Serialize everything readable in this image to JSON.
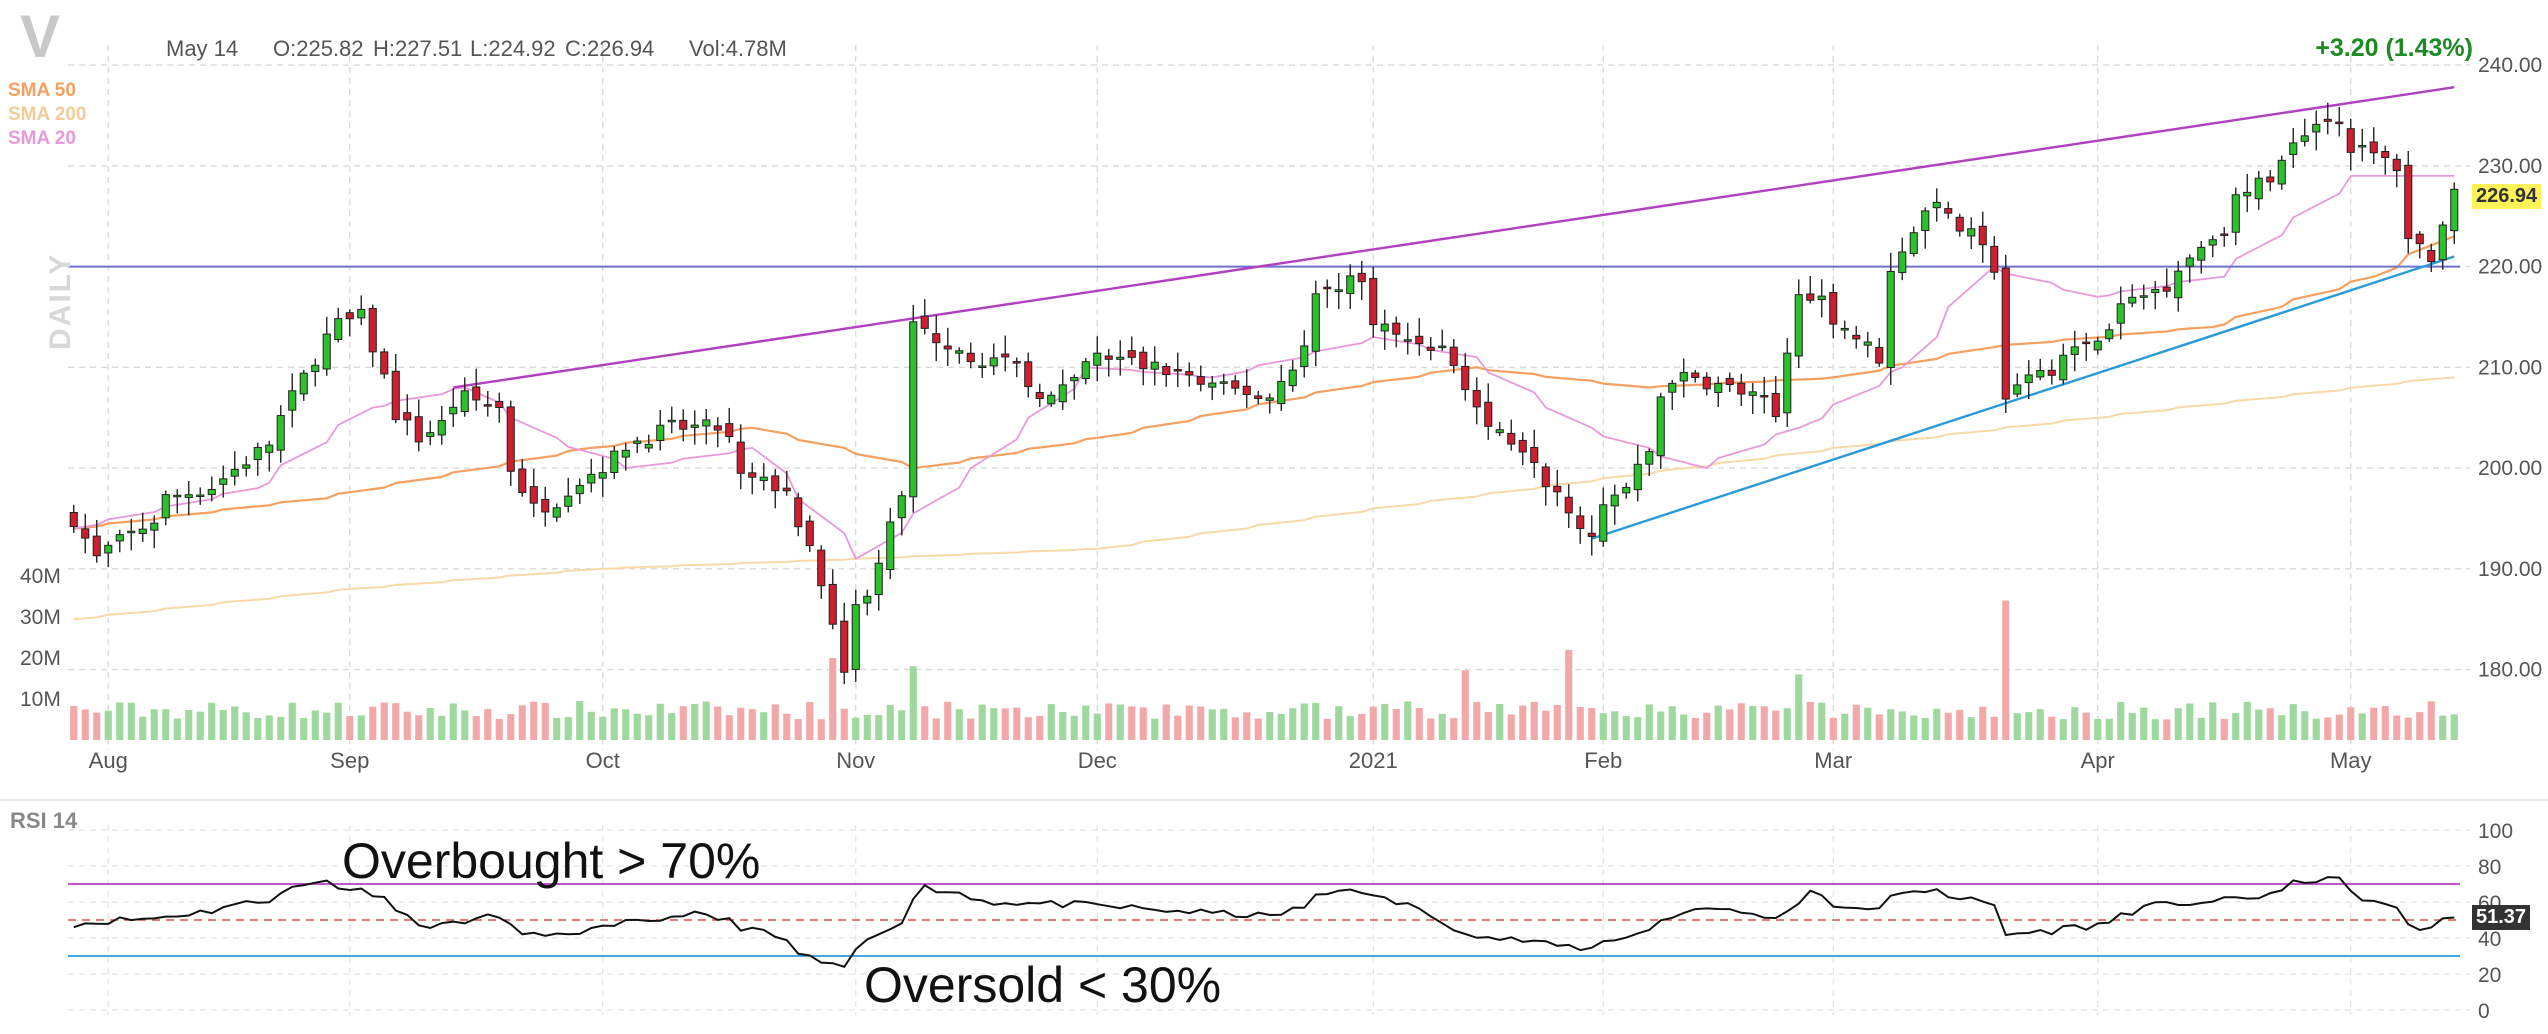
{
  "header": {
    "ticker": "V",
    "date": "May 14",
    "open": "O:225.82",
    "high": "H:227.51",
    "low": "L:224.92",
    "close": "C:226.94",
    "volume": "Vol:4.78M",
    "change": "+3.20 (1.43%)"
  },
  "legend": {
    "sma50": "SMA 50",
    "sma200": "SMA 200",
    "sma20": "SMA 20"
  },
  "timeframe_label": "DAILY",
  "rsi": {
    "title": "RSI 14",
    "current_label": "51.37",
    "overbought_text": "Overbought > 70%",
    "oversold_text": "Oversold < 30%"
  },
  "current_price_label": "226.94",
  "colors": {
    "up": "#2dc02d",
    "down": "#cc1f2f",
    "sma50": "#f5a060",
    "sma200": "#f7d8a8",
    "sma20": "#e89ad8",
    "resistance_trend": "#b040c0",
    "support_trend": "#2a9ad8",
    "horizontal_level": "#7070d0",
    "volume_up": "#9fd89f",
    "volume_down": "#f2a8a8",
    "rsi_line": "#111111",
    "rsi_overbought": "#b040c0",
    "rsi_oversold": "#2a9ad8",
    "rsi_mid": "#e05050",
    "price_badge": "#fff35a"
  },
  "chart_data": {
    "type": "candlestick",
    "price_axis": {
      "ticks": [
        180,
        190,
        200,
        210,
        220,
        230,
        240
      ],
      "tick_labels": [
        "180.00",
        "190.00",
        "200.00",
        "210.00",
        "220.00",
        "230.00",
        "240.00"
      ],
      "range": [
        174,
        241
      ]
    },
    "volume_axis": {
      "ticks": [
        10,
        20,
        30,
        40
      ],
      "tick_labels": [
        "10M",
        "20M",
        "30M",
        "40M"
      ],
      "unit": "M"
    },
    "rsi_axis": {
      "ticks": [
        0,
        20,
        40,
        60,
        80,
        100
      ],
      "tick_labels": [
        "0",
        "20",
        "40",
        "60",
        "80",
        "100"
      ],
      "range": [
        0,
        100
      ],
      "overbought": 70,
      "oversold": 30
    },
    "x_labels": [
      {
        "label": "Aug",
        "date": "2020-08-03"
      },
      {
        "label": "Sep",
        "date": "2020-09-01"
      },
      {
        "label": "Oct",
        "date": "2020-10-01"
      },
      {
        "label": "Nov",
        "date": "2020-11-02"
      },
      {
        "label": "Dec",
        "date": "2020-12-01"
      },
      {
        "label": "2021",
        "date": "2021-01-04"
      },
      {
        "label": "Feb",
        "date": "2021-02-01"
      },
      {
        "label": "Mar",
        "date": "2021-03-01"
      },
      {
        "label": "Apr",
        "date": "2021-04-01"
      },
      {
        "label": "May",
        "date": "2021-05-03"
      }
    ],
    "start_date": "2020-07-29",
    "end_date": "2021-05-14",
    "close_anchors": [
      [
        "2020-07-29",
        195
      ],
      [
        "2020-07-31",
        191
      ],
      [
        "2020-08-03",
        192
      ],
      [
        "2020-08-10",
        197
      ],
      [
        "2020-08-17",
        199
      ],
      [
        "2020-08-24",
        205
      ],
      [
        "2020-08-28",
        213
      ],
      [
        "2020-09-02",
        215
      ],
      [
        "2020-09-04",
        209
      ],
      [
        "2020-09-09",
        203
      ],
      [
        "2020-09-15",
        207
      ],
      [
        "2020-09-18",
        206
      ],
      [
        "2020-09-23",
        196
      ],
      [
        "2020-09-28",
        198
      ],
      [
        "2020-10-02",
        201
      ],
      [
        "2020-10-09",
        204
      ],
      [
        "2020-10-15",
        204
      ],
      [
        "2020-10-19",
        199
      ],
      [
        "2020-10-23",
        198
      ],
      [
        "2020-10-27",
        192
      ],
      [
        "2020-10-30",
        180
      ],
      [
        "2020-11-03",
        188
      ],
      [
        "2020-11-06",
        197
      ],
      [
        "2020-11-09",
        214
      ],
      [
        "2020-11-13",
        212
      ],
      [
        "2020-11-20",
        210
      ],
      [
        "2020-11-25",
        207
      ],
      [
        "2020-12-01",
        211
      ],
      [
        "2020-12-08",
        210
      ],
      [
        "2020-12-15",
        208
      ],
      [
        "2020-12-22",
        207
      ],
      [
        "2020-12-28",
        217
      ],
      [
        "2020-12-31",
        219
      ],
      [
        "2021-01-06",
        213
      ],
      [
        "2021-01-12",
        212
      ],
      [
        "2021-01-15",
        206
      ],
      [
        "2021-01-20",
        203
      ],
      [
        "2021-01-26",
        198
      ],
      [
        "2021-01-29",
        193
      ],
      [
        "2021-02-03",
        198
      ],
      [
        "2021-02-09",
        209
      ],
      [
        "2021-02-16",
        208
      ],
      [
        "2021-02-22",
        205
      ],
      [
        "2021-02-24",
        218
      ],
      [
        "2021-03-01",
        215
      ],
      [
        "2021-03-05",
        211
      ],
      [
        "2021-03-09",
        222
      ],
      [
        "2021-03-12",
        227
      ],
      [
        "2021-03-17",
        223
      ],
      [
        "2021-03-19",
        220
      ],
      [
        "2021-03-22",
        207
      ],
      [
        "2021-03-26",
        210
      ],
      [
        "2021-03-31",
        212
      ],
      [
        "2021-04-05",
        216
      ],
      [
        "2021-04-12",
        220
      ],
      [
        "2021-04-16",
        224
      ],
      [
        "2021-04-22",
        229
      ],
      [
        "2021-04-26",
        233
      ],
      [
        "2021-04-29",
        235
      ],
      [
        "2021-05-03",
        232
      ],
      [
        "2021-05-07",
        230
      ],
      [
        "2021-05-10",
        223
      ],
      [
        "2021-05-12",
        221
      ],
      [
        "2021-05-14",
        226.94
      ]
    ],
    "trend_lines": [
      {
        "name": "resistance",
        "from": [
          "2020-09-14",
          208
        ],
        "to": [
          "2021-05-14",
          237.8
        ]
      },
      {
        "name": "support",
        "from": [
          "2021-01-29",
          193
        ],
        "to": [
          "2021-05-14",
          221
        ]
      }
    ],
    "horizontal_levels": [
      220
    ],
    "sma20_anchors": [
      [
        "2020-07-29",
        194
      ],
      [
        "2020-08-20",
        198
      ],
      [
        "2020-09-03",
        206
      ],
      [
        "2020-09-15",
        208
      ],
      [
        "2020-09-25",
        203
      ],
      [
        "2020-10-05",
        200
      ],
      [
        "2020-10-20",
        202
      ],
      [
        "2020-11-02",
        191
      ],
      [
        "2020-11-16",
        200
      ],
      [
        "2020-11-30",
        210
      ],
      [
        "2020-12-15",
        209
      ],
      [
        "2021-01-04",
        213
      ],
      [
        "2021-01-15",
        211
      ],
      [
        "2021-01-29",
        204
      ],
      [
        "2021-02-12",
        200
      ],
      [
        "2021-02-24",
        204
      ],
      [
        "2021-03-09",
        210
      ],
      [
        "2021-03-19",
        220
      ],
      [
        "2021-04-01",
        217
      ],
      [
        "2021-04-16",
        219
      ],
      [
        "2021-05-03",
        229
      ],
      [
        "2021-05-14",
        229
      ]
    ],
    "sma50_anchors": [
      [
        "2020-07-29",
        194
      ],
      [
        "2020-08-28",
        197
      ],
      [
        "2020-09-30",
        202
      ],
      [
        "2020-10-20",
        204
      ],
      [
        "2020-11-09",
        200
      ],
      [
        "2020-12-01",
        203
      ],
      [
        "2020-12-31",
        208
      ],
      [
        "2021-01-15",
        210
      ],
      [
        "2021-02-05",
        208
      ],
      [
        "2021-03-01",
        209
      ],
      [
        "2021-03-19",
        212
      ],
      [
        "2021-04-15",
        214
      ],
      [
        "2021-05-05",
        219
      ],
      [
        "2021-05-14",
        223
      ]
    ],
    "sma200_anchors": [
      [
        "2020-07-29",
        185
      ],
      [
        "2020-09-01",
        188
      ],
      [
        "2020-10-01",
        190
      ],
      [
        "2020-11-02",
        191
      ],
      [
        "2020-12-01",
        192
      ],
      [
        "2021-01-04",
        196
      ],
      [
        "2021-02-01",
        199
      ],
      [
        "2021-03-01",
        202
      ],
      [
        "2021-04-01",
        205
      ],
      [
        "2021-05-14",
        209
      ]
    ],
    "rsi_anchors": [
      [
        "2020-07-29",
        48
      ],
      [
        "2020-08-10",
        52
      ],
      [
        "2020-08-20",
        60
      ],
      [
        "2020-08-28",
        72
      ],
      [
        "2020-09-04",
        64
      ],
      [
        "2020-09-10",
        46
      ],
      [
        "2020-09-18",
        52
      ],
      [
        "2020-09-24",
        40
      ],
      [
        "2020-10-05",
        48
      ],
      [
        "2020-10-12",
        54
      ],
      [
        "2020-10-20",
        45
      ],
      [
        "2020-10-30",
        22
      ],
      [
        "2020-11-06",
        50
      ],
      [
        "2020-11-10",
        68
      ],
      [
        "2020-11-18",
        60
      ],
      [
        "2020-11-30",
        58
      ],
      [
        "2020-12-10",
        55
      ],
      [
        "2020-12-22",
        52
      ],
      [
        "2020-12-31",
        68
      ],
      [
        "2021-01-08",
        57
      ],
      [
        "2021-01-15",
        42
      ],
      [
        "2021-01-29",
        34
      ],
      [
        "2021-02-05",
        44
      ],
      [
        "2021-02-12",
        58
      ],
      [
        "2021-02-22",
        50
      ],
      [
        "2021-02-25",
        66
      ],
      [
        "2021-03-03",
        55
      ],
      [
        "2021-03-12",
        68
      ],
      [
        "2021-03-19",
        58
      ],
      [
        "2021-03-22",
        42
      ],
      [
        "2021-04-01",
        47
      ],
      [
        "2021-04-08",
        58
      ],
      [
        "2021-04-20",
        62
      ],
      [
        "2021-04-29",
        74
      ],
      [
        "2021-05-06",
        58
      ],
      [
        "2021-05-11",
        45
      ],
      [
        "2021-05-14",
        51.37
      ]
    ],
    "volume_spikes": [
      [
        "2020-10-29",
        20
      ],
      [
        "2020-11-09",
        18
      ],
      [
        "2021-01-27",
        22
      ],
      [
        "2021-03-22",
        34
      ],
      [
        "2021-02-24",
        16
      ],
      [
        "2021-01-14",
        17
      ]
    ]
  }
}
